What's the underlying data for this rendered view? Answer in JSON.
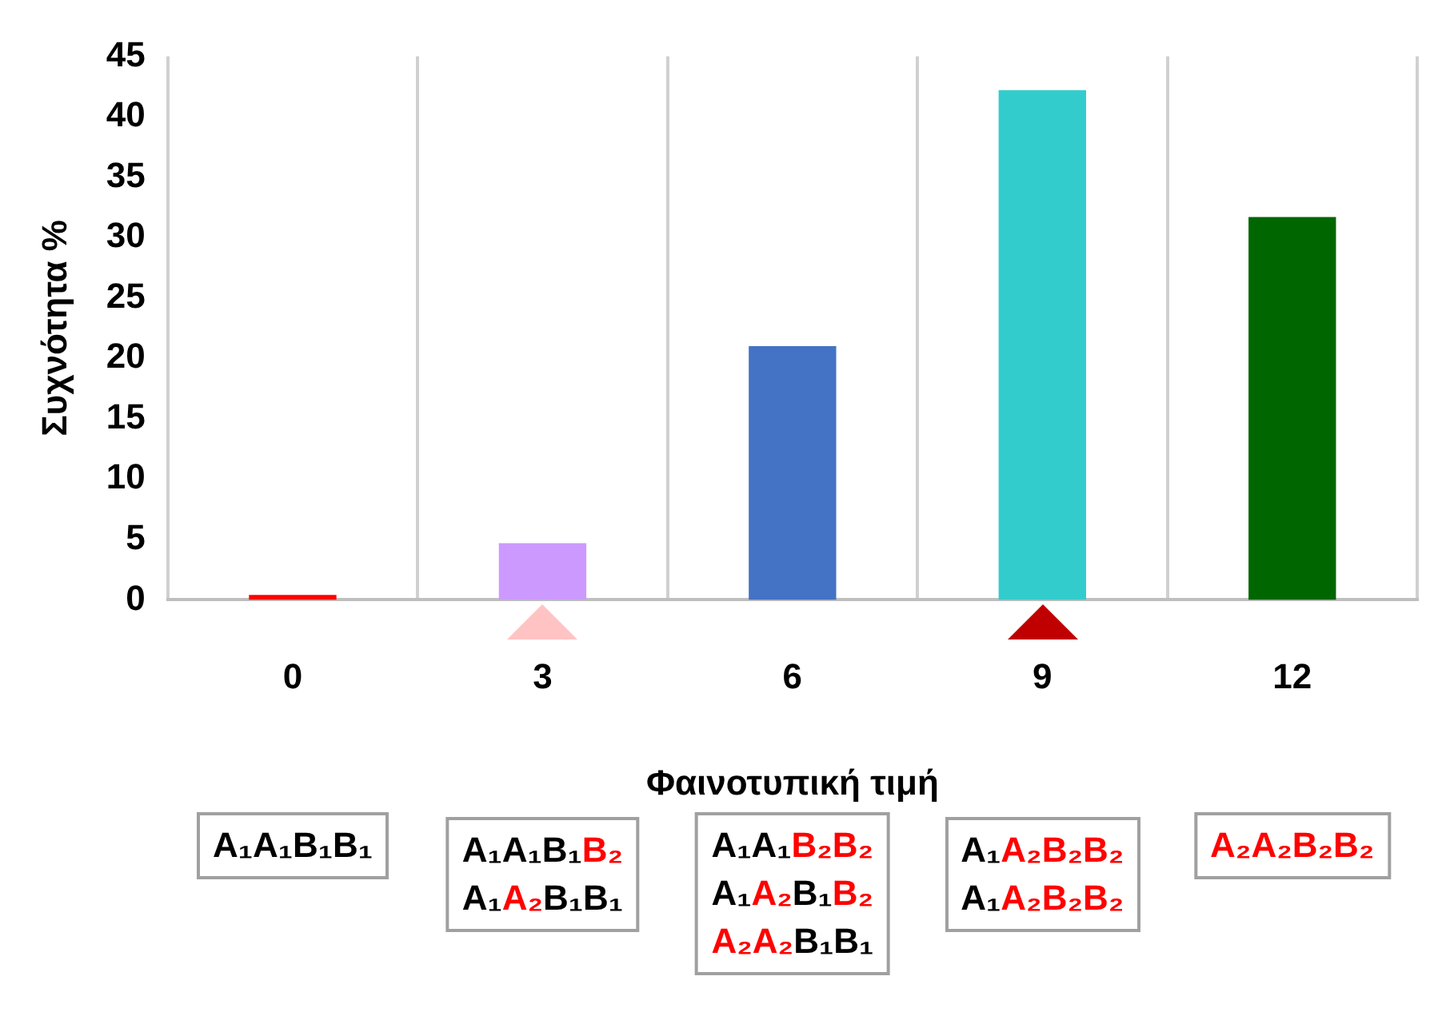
{
  "chart_data": {
    "type": "bar",
    "xlabel": "Φαινοτυπική τιμή",
    "ylabel": "Συχνότητα %",
    "categories": [
      "0",
      "3",
      "6",
      "9",
      "12"
    ],
    "values": [
      0.4,
      4.7,
      21.0,
      42.2,
      31.7
    ],
    "colors": [
      "#ff0000",
      "#cc99ff",
      "#4472c4",
      "#33cccc",
      "#006600"
    ],
    "ylim": [
      0,
      45
    ],
    "yticks": [
      0,
      5,
      10,
      15,
      20,
      25,
      30,
      35,
      40,
      45
    ],
    "grid": "x",
    "legend": false,
    "annotations": [
      "A₁A₁B₁B₁",
      "A₁A₁B₁B₂\nA₁A₂B₁B₁",
      "A₁A₁B₂B₂\nA₁A₂B₁B₂\nA₂A₂B₁B₁",
      "A₁A₂B₂B₂\nA₁A₂B₂B₂",
      "A₂A₂B₂B₂"
    ]
  }
}
